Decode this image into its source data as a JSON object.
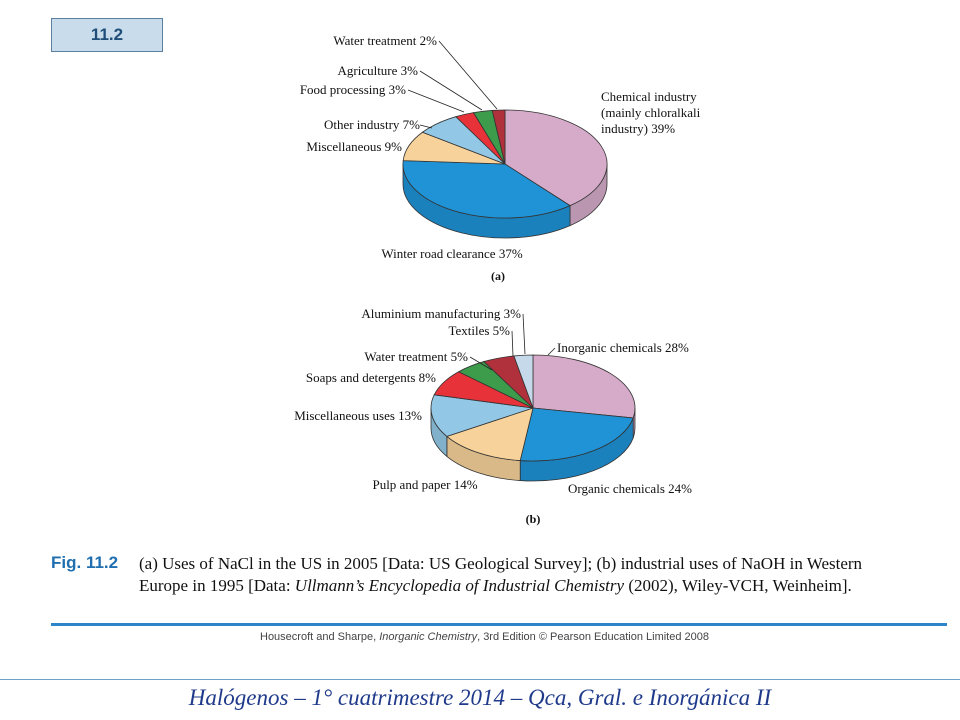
{
  "figure": {
    "badge": "11.2",
    "label": "Fig. 11.2",
    "caption_part1": "(a) Uses of NaCl in the US in 2005 [Data: US Geological Survey]; (b) industrial uses of NaOH in Western Europe in 1995 [Data: ",
    "caption_italic": "Ullmann’s Encyclopedia of Industrial Chemistry",
    "caption_part2": " (2002), Wiley-VCH, Weinheim].",
    "credit_part1": "Housecroft and Sharpe, ",
    "credit_italic": "Inorganic Chemistry",
    "credit_part2": ", 3rd Edition © Pearson Education Limited 2008"
  },
  "footer": {
    "text": "Halógenos  – 1° cuatrimestre 2014 – Qca, Gral. e Inorgánica II"
  },
  "chart_data": [
    {
      "type": "pie",
      "panel": "(a)",
      "slices": [
        {
          "label": [
            "Chemical industry",
            "(mainly chloralkali",
            "industry) 39%"
          ],
          "value": 39,
          "color": "#d5abc9"
        },
        {
          "label": [
            "Winter road clearance 37%"
          ],
          "value": 37,
          "color": "#1f93d6"
        },
        {
          "label": [
            "Miscellaneous 9%"
          ],
          "value": 9,
          "color": "#f7d29a"
        },
        {
          "label": [
            "Other industry 7%"
          ],
          "value": 7,
          "color": "#92c8e6"
        },
        {
          "label": [
            "Food processing 3%"
          ],
          "value": 3,
          "color": "#e8323a"
        },
        {
          "label": [
            "Agriculture 3%"
          ],
          "value": 3,
          "color": "#3c9c4c"
        },
        {
          "label": [
            "Water treatment 2%"
          ],
          "value": 2,
          "color": "#b0303c"
        }
      ]
    },
    {
      "type": "pie",
      "panel": "(b)",
      "slices": [
        {
          "label": [
            "Inorganic chemicals 28%"
          ],
          "value": 28,
          "color": "#d5abc9"
        },
        {
          "label": [
            "Organic chemicals 24%"
          ],
          "value": 24,
          "color": "#1f93d6"
        },
        {
          "label": [
            "Pulp and paper 14%"
          ],
          "value": 14,
          "color": "#f7d29a"
        },
        {
          "label": [
            "Miscellaneous uses 13%"
          ],
          "value": 13,
          "color": "#92c8e6"
        },
        {
          "label": [
            "Soaps and detergents 8%"
          ],
          "value": 8,
          "color": "#e8323a"
        },
        {
          "label": [
            "Water treatment 5%"
          ],
          "value": 5,
          "color": "#3c9c4c"
        },
        {
          "label": [
            "Textiles 5%"
          ],
          "value": 5,
          "color": "#b0303c"
        },
        {
          "label": [
            "Aluminium manufacturing 3%"
          ],
          "value": 3,
          "color": "#c6d9ea"
        }
      ]
    }
  ]
}
